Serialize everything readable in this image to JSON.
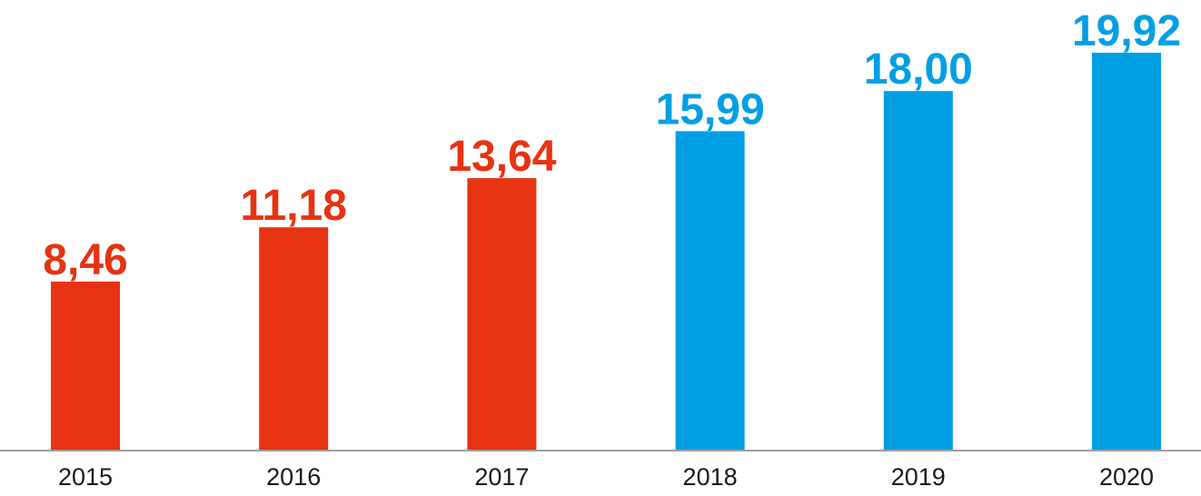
{
  "chart_data": {
    "type": "bar",
    "title": "",
    "xlabel": "",
    "ylabel": "",
    "categories": [
      "2015",
      "2016",
      "2017",
      "2018",
      "2019",
      "2020"
    ],
    "values": [
      8.46,
      11.18,
      13.64,
      15.99,
      18.0,
      19.92
    ],
    "value_labels": [
      "8,46",
      "11,18",
      "13,64",
      "15,99",
      "18,00",
      "19,92"
    ],
    "ylim": [
      0,
      19.92
    ],
    "grid": false,
    "legend": "none",
    "bar_colors": [
      "#e63312",
      "#e63312",
      "#e63312",
      "#009fe3",
      "#009fe3",
      "#009fe3"
    ],
    "axis_color": "#9e9e9e",
    "tick_label_color": "#1a1a1a"
  }
}
